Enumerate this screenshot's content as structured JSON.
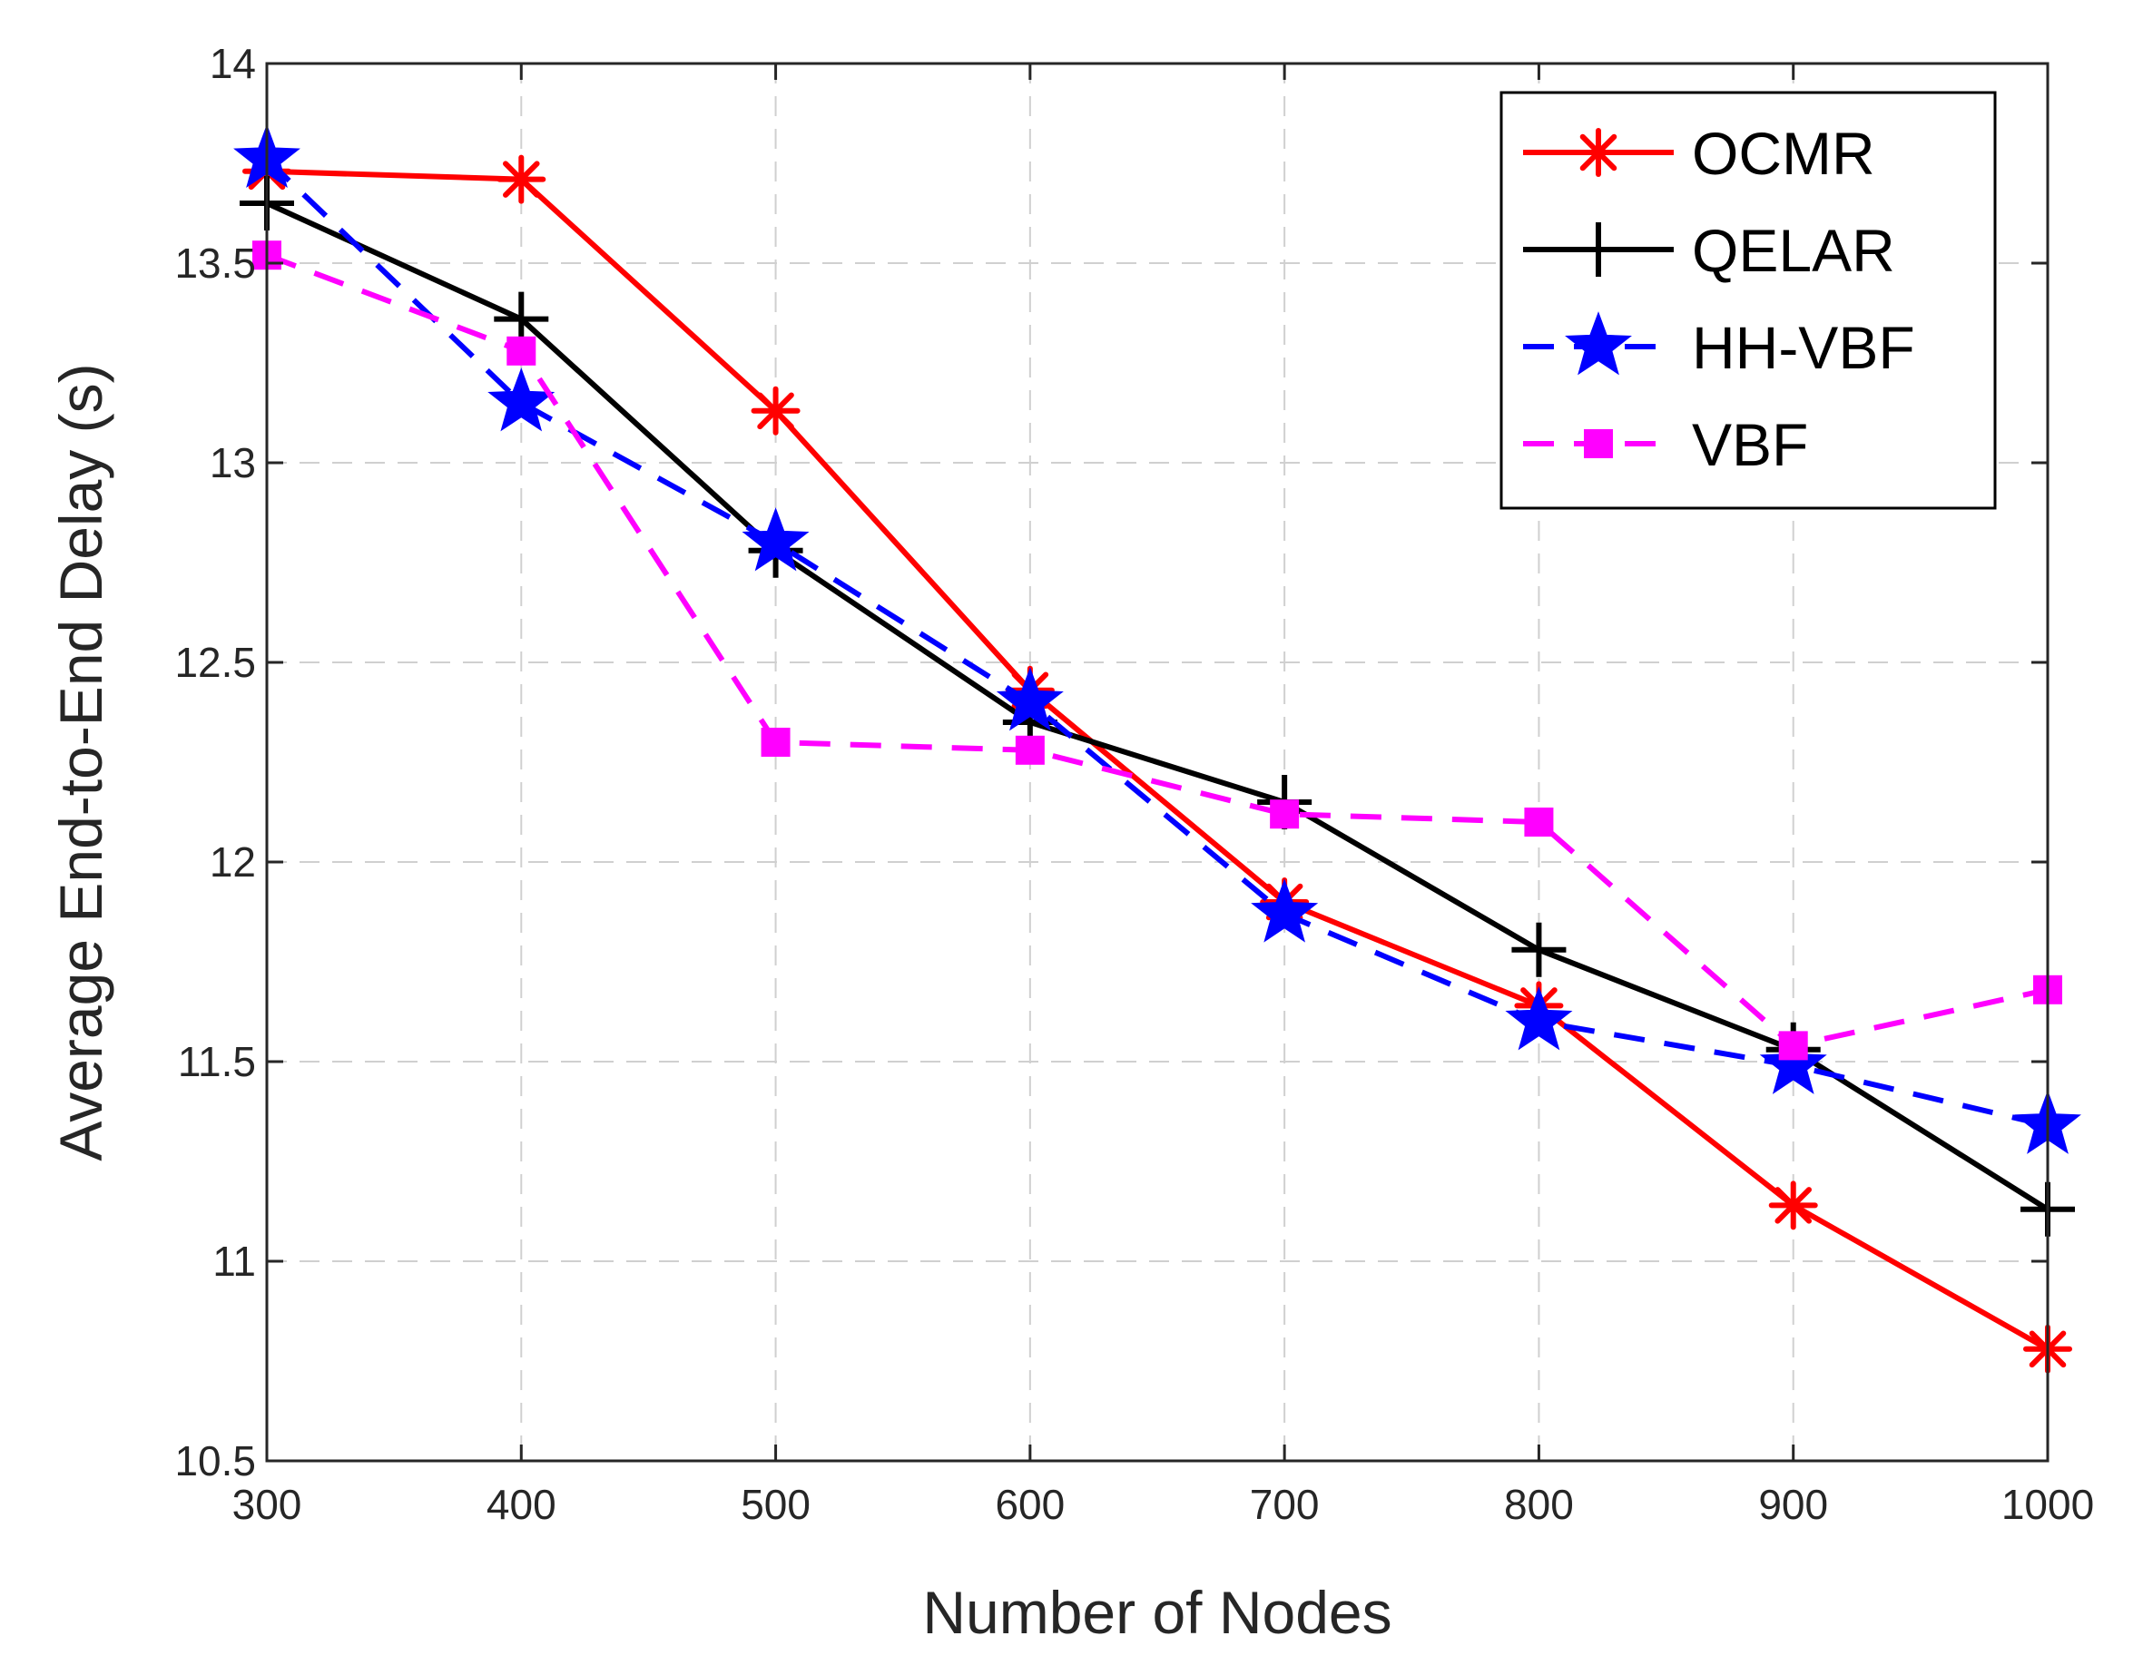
{
  "chart_data": {
    "type": "line",
    "title": "",
    "xlabel": "Number of Nodes",
    "ylabel": "Average End-to-End Delay (s)",
    "xlim": [
      300,
      1000
    ],
    "ylim": [
      10.5,
      14
    ],
    "xticks": [
      300,
      400,
      500,
      600,
      700,
      800,
      900,
      1000
    ],
    "yticks": [
      10.5,
      11,
      11.5,
      12,
      12.5,
      13,
      13.5,
      14
    ],
    "xtick_labels": [
      "300",
      "400",
      "500",
      "600",
      "700",
      "800",
      "900",
      "1000"
    ],
    "ytick_labels": [
      "10.5",
      "11",
      "11.5",
      "12",
      "12.5",
      "13",
      "13.5",
      "14"
    ],
    "grid": true,
    "legend_position": "top-right",
    "x": [
      300,
      400,
      500,
      600,
      700,
      800,
      900,
      1000
    ],
    "series": [
      {
        "name": "OCMR",
        "color": "#ff0000",
        "line": "solid",
        "marker": "asterisk",
        "values": [
          13.73,
          13.71,
          13.13,
          12.43,
          11.9,
          11.64,
          11.14,
          10.78
        ]
      },
      {
        "name": "QELAR",
        "color": "#000000",
        "line": "solid",
        "marker": "plus",
        "values": [
          13.65,
          13.36,
          12.78,
          12.35,
          12.15,
          11.78,
          11.53,
          11.13
        ]
      },
      {
        "name": "HH-VBF",
        "color": "#0000ff",
        "line": "dashed",
        "marker": "star",
        "values": [
          13.76,
          13.15,
          12.8,
          12.4,
          11.87,
          11.6,
          11.49,
          11.34
        ]
      },
      {
        "name": "VBF",
        "color": "#ff00ff",
        "line": "dashed",
        "marker": "square",
        "values": [
          13.52,
          13.28,
          12.3,
          12.28,
          12.12,
          12.1,
          11.54,
          11.68
        ]
      }
    ]
  }
}
